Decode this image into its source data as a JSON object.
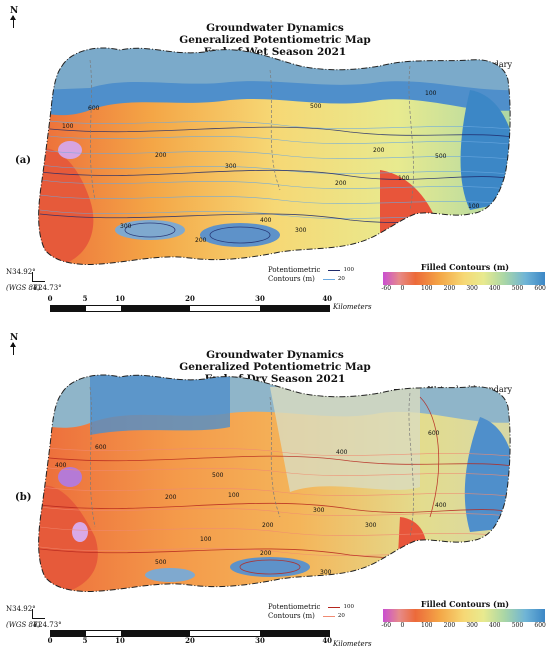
{
  "north_label": "N",
  "titles": [
    "Groundwater Dynamics",
    "Generalized Potentiometric Map",
    "End of Wet Season 2021"
  ],
  "titles_b": [
    "Groundwater Dynamics",
    "Generalized Potentiometric Map",
    "End of Dry Season 2021"
  ],
  "watershed_label": "Watershed boundary",
  "panel_a_label": "(a)",
  "panel_b_label": "(b)",
  "coordinates": {
    "lat": "N34.92°",
    "datum": "(WGS 84)",
    "lon": "E24.73°"
  },
  "line_legend": {
    "title_line1": "Potentiometric",
    "title_line2": "Contours (m)",
    "major_value": "100",
    "minor_value": "20",
    "colors_a": {
      "major": "#1f2a6b",
      "minor": "#6aa8e0"
    },
    "colors_b": {
      "major": "#b5261e",
      "minor": "#f08a72"
    }
  },
  "filled_legend": {
    "title": "Filled Contours (m)",
    "ticks": [
      "-60",
      "0",
      "100",
      "200",
      "300",
      "400",
      "500",
      "600"
    ],
    "colors": [
      "#c94fd1",
      "#e68a8a",
      "#ec6a3a",
      "#f4a646",
      "#f6d875",
      "#e8ea8f",
      "#a9d6a6",
      "#6fb4d6",
      "#3c87c6"
    ]
  },
  "scale": {
    "ticks": [
      "0",
      "5",
      "10",
      "20",
      "30",
      "40"
    ],
    "unit": "Kilometers"
  },
  "map_a_contour_labels": [
    "600",
    "100",
    "200",
    "500",
    "300",
    "200",
    "100",
    "300",
    "400",
    "500",
    "100",
    "100",
    "200",
    "300",
    "200"
  ],
  "map_b_contour_labels": [
    "600",
    "400",
    "200",
    "500",
    "100",
    "400",
    "300",
    "300",
    "200",
    "500",
    "100",
    "200",
    "300",
    "600",
    "400"
  ]
}
